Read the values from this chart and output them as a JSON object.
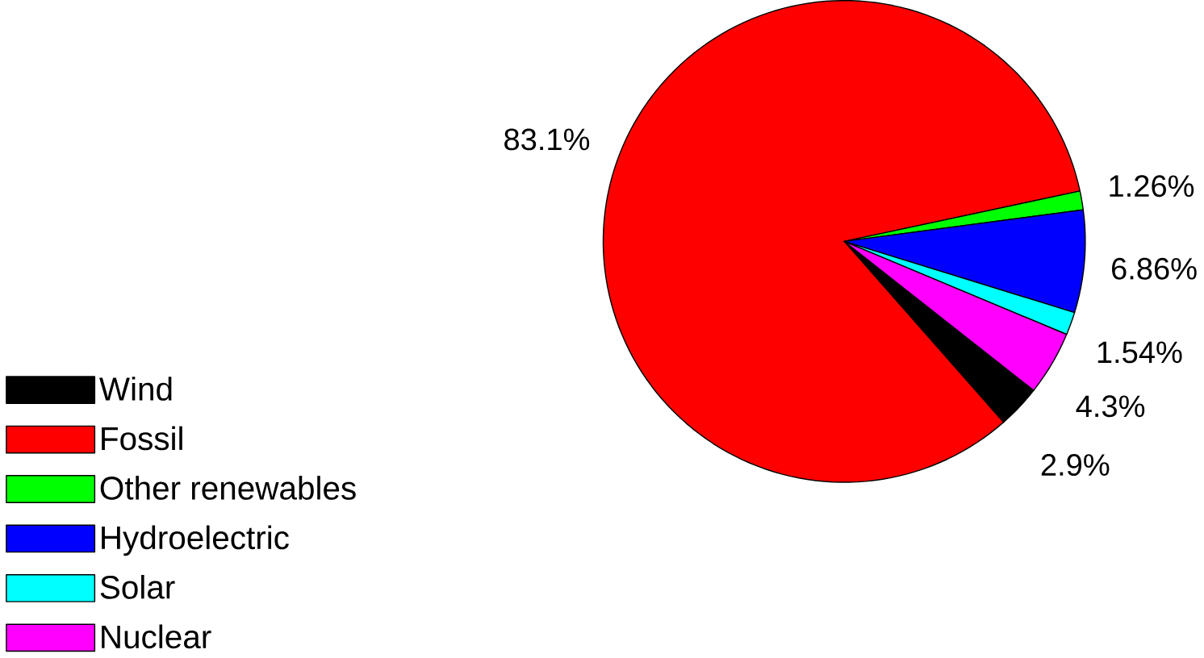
{
  "chart_data": {
    "type": "pie",
    "categories": [
      "Wind",
      "Fossil",
      "Other renewables",
      "Hydroelectric",
      "Solar",
      "Nuclear"
    ],
    "values": [
      2.9,
      83.1,
      1.26,
      6.86,
      1.54,
      4.3
    ],
    "value_labels": [
      "2.9%",
      "83.1%",
      "1.26%",
      "6.86%",
      "1.54%",
      "4.3%"
    ],
    "colors": [
      "#000000",
      "#ff0000",
      "#00ff00",
      "#0000ff",
      "#00ffff",
      "#ff00ff"
    ],
    "legend": "bottom left"
  }
}
